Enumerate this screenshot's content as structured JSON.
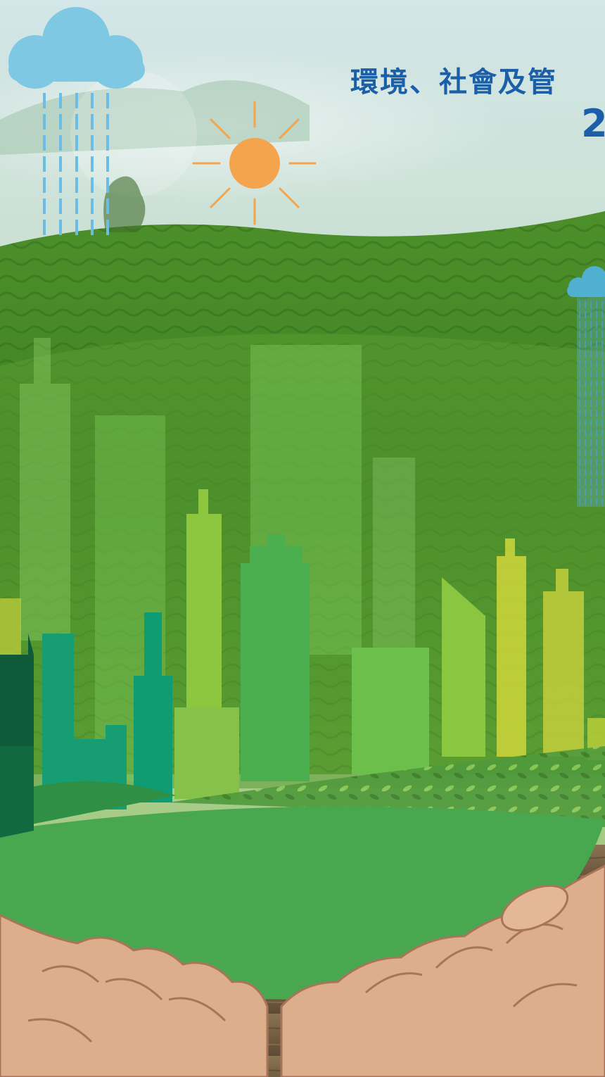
{
  "cover": {
    "title_line1": "環境、社會及管",
    "title_line2": "2",
    "title_color": "#1b5fa8"
  },
  "scene": {
    "icons": [
      "cloud-icon",
      "rain-icon",
      "sun-icon",
      "small-cloud-icon"
    ],
    "colors": {
      "sky_top": "#cfe4e6",
      "hill_green": "#5f9a2c",
      "dark_green": "#2e6a1c",
      "building_light": "#8cc63f",
      "building_mid": "#4caf50",
      "building_teal": "#14a073",
      "building_dark": "#0e5a38",
      "building_yellow": "#c6d23a",
      "globe_green": "#49a84f",
      "hand_skin": "#dcae8b",
      "hand_outline": "#a9745a",
      "wood": "#7a6447",
      "sun": "#f4a44c",
      "cloud": "#7ec8e3",
      "rain": "#6bbde6"
    }
  }
}
